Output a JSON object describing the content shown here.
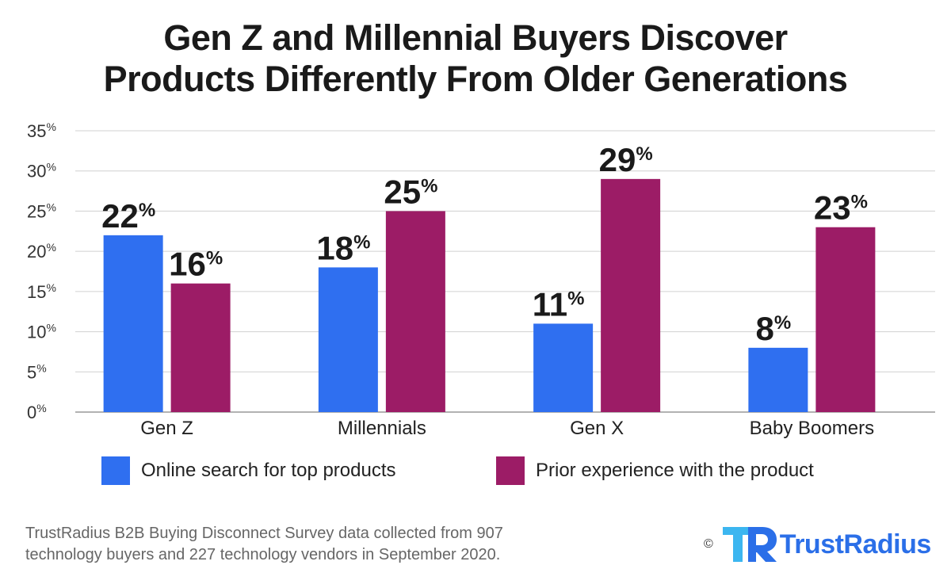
{
  "title_lines": [
    "Gen Z and Millennial Buyers Discover",
    "Products Differently From Older Generations"
  ],
  "colors": {
    "series1": "#2f6ff0",
    "series2": "#9c1c66",
    "grid": "#d0d0d0",
    "axis": "#999999",
    "brand": "#2b6fe8"
  },
  "chart_data": {
    "type": "bar",
    "categories": [
      "Gen Z",
      "Millennials",
      "Gen X",
      "Baby Boomers"
    ],
    "series": [
      {
        "name": "Online search for top products",
        "values": [
          22,
          18,
          11,
          8
        ],
        "color": "#2f6ff0"
      },
      {
        "name": "Prior experience with the product",
        "values": [
          16,
          25,
          29,
          23
        ],
        "color": "#9c1c66"
      }
    ],
    "ylim": [
      0,
      35
    ],
    "yticks": [
      0,
      5,
      10,
      15,
      20,
      25,
      30,
      35
    ],
    "grid": true,
    "legend": "bottom",
    "value_unit": "%"
  },
  "legend": {
    "series1_label": "Online search for top products",
    "series2_label": "Prior experience with the product"
  },
  "footnote_lines": [
    "TrustRadius B2B Buying Disconnect Survey data collected from 907",
    "technology buyers and 227 technology vendors in September 2020."
  ],
  "brand": {
    "copyright": "©",
    "name": "TrustRadius",
    "logo_icon": "trustradius-logo-icon"
  }
}
